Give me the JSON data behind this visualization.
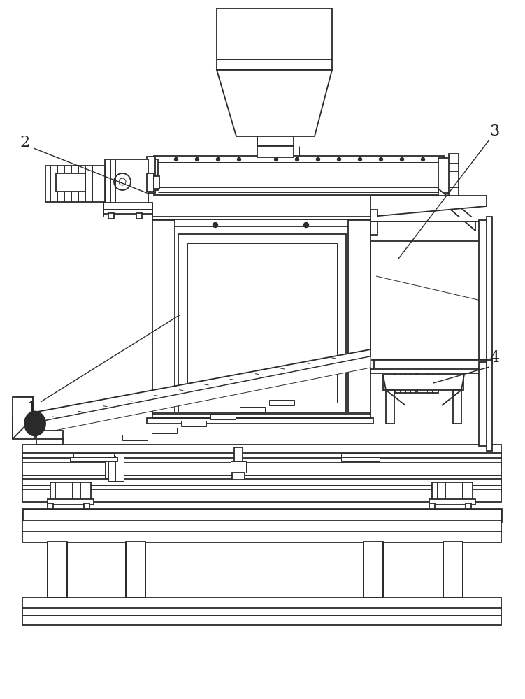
{
  "bg_color": "#ffffff",
  "lc": "#2a2a2a",
  "lw": 1.3,
  "lw2": 0.7,
  "lw3": 2.0
}
